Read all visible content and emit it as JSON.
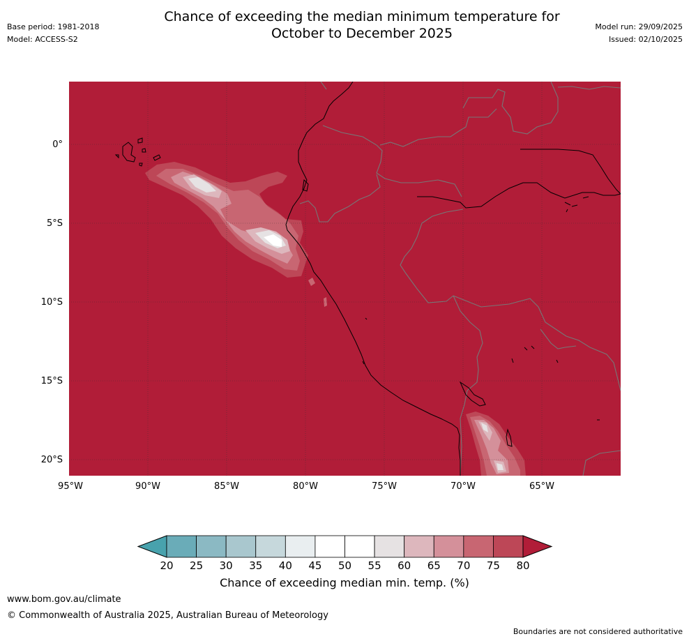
{
  "header": {
    "title_line1": "Chance of exceeding the median minimum temperature for",
    "title_line2": "October to December 2025",
    "base_period": "Base period: 1981-2018",
    "model": "Model: ACCESS-S2",
    "model_run": "Model run: 29/09/2025",
    "issued": "Issued: 02/10/2025"
  },
  "map": {
    "extent": {
      "lon_min": -95,
      "lon_max": -60,
      "lat_min": -21,
      "lat_max": 4
    },
    "lat_labels": [
      "0°",
      "5°S",
      "10°S",
      "15°S",
      "20°S"
    ],
    "lon_labels": [
      "95°W",
      "90°W",
      "85°W",
      "80°W",
      "75°W",
      "70°W",
      "65°W"
    ],
    "background_color": "#b11d38",
    "coast_color": "#000000",
    "border_color": "#777777"
  },
  "colorbar": {
    "label": "Chance of exceeding median min. temp. (%)",
    "ticks": [
      "20",
      "25",
      "30",
      "35",
      "40",
      "45",
      "50",
      "55",
      "60",
      "65",
      "70",
      "75",
      "80"
    ],
    "colors": [
      "#48a2ad",
      "#6aacb8",
      "#8bb9c3",
      "#a9c7ce",
      "#c6d8dc",
      "#e9eef0",
      "#ffffff",
      "#ffffff",
      "#e6e2e3",
      "#ddb7bd",
      "#d4909a",
      "#c86672",
      "#bd4757",
      "#b11d38"
    ]
  },
  "footer": {
    "link": "www.bom.gov.au/climate",
    "copyright": "© Commonwealth of Australia 2025, Australian Bureau of Meteorology",
    "disclaimer": "Boundaries are not considered authoritative"
  }
}
